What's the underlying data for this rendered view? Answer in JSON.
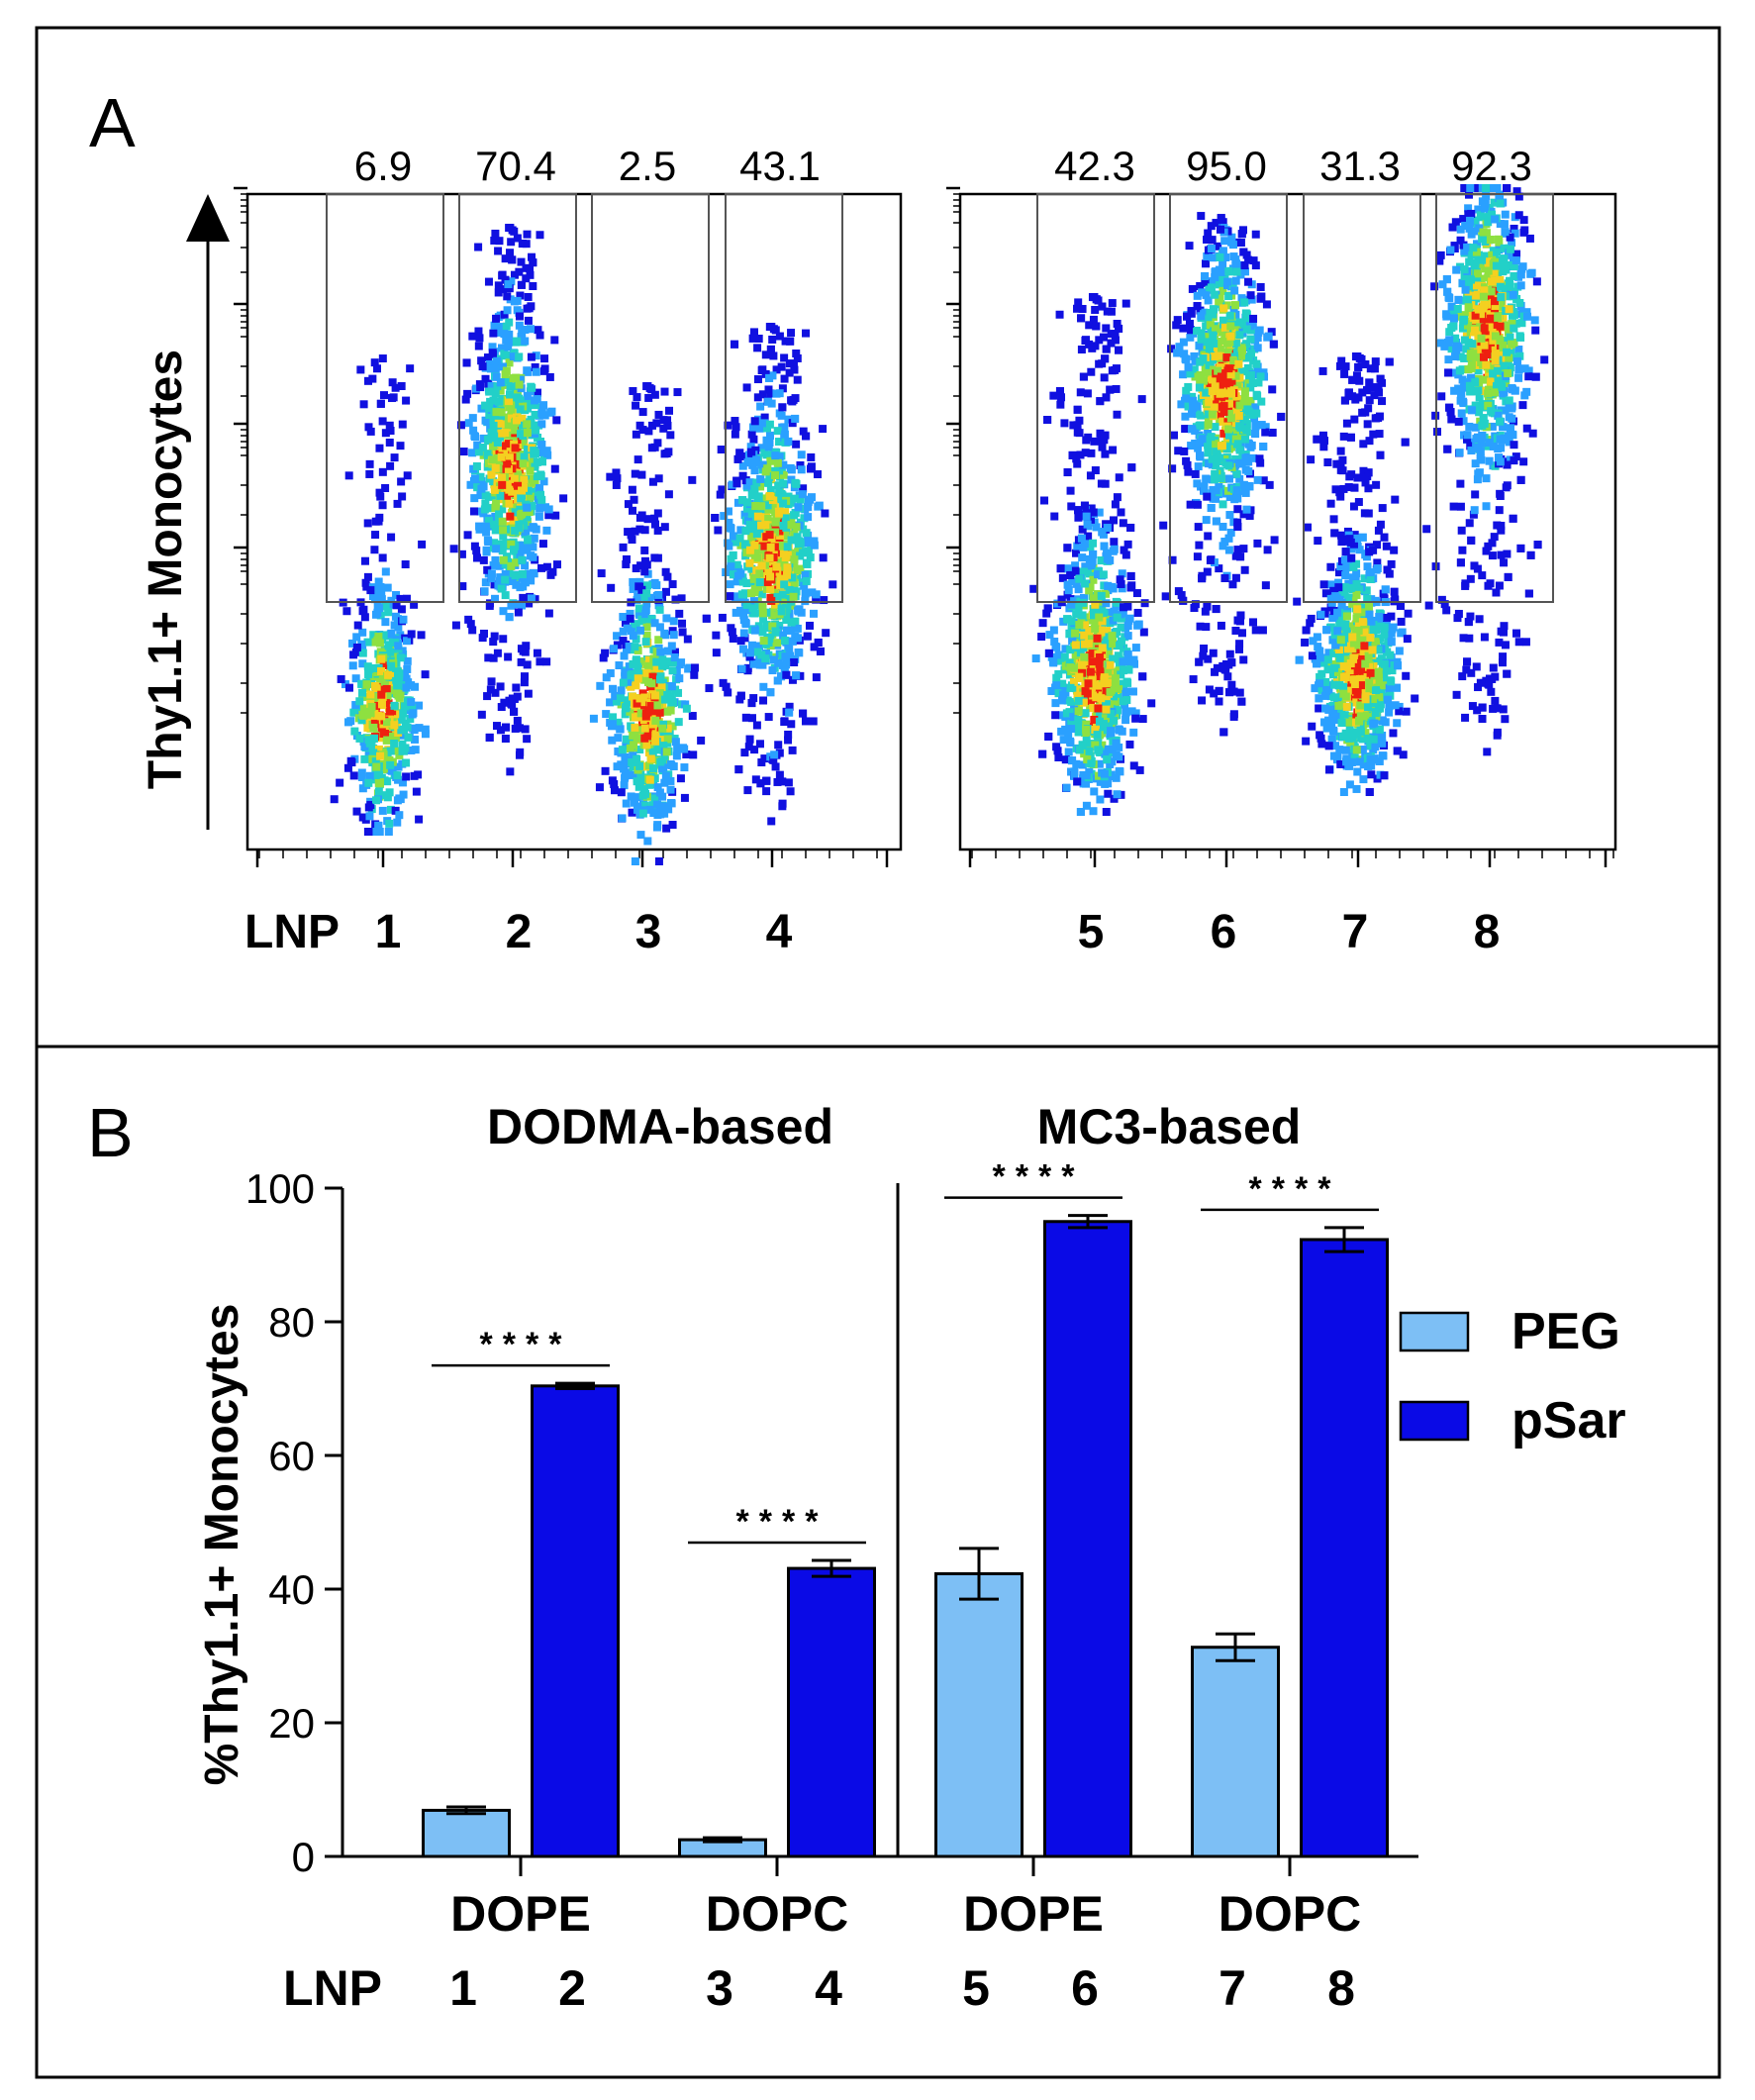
{
  "panel_a": {
    "letter": "A",
    "ylabel": "Thy1.1+ Monocytes",
    "lnp_prefix": "LNP",
    "gates": [
      {
        "lnp": "1",
        "percent": "6.9"
      },
      {
        "lnp": "2",
        "percent": "70.4"
      },
      {
        "lnp": "3",
        "percent": "2.5"
      },
      {
        "lnp": "4",
        "percent": "43.1"
      },
      {
        "lnp": "5",
        "percent": "42.3"
      },
      {
        "lnp": "6",
        "percent": "95.0"
      },
      {
        "lnp": "7",
        "percent": "31.3"
      },
      {
        "lnp": "8",
        "percent": "92.3"
      }
    ],
    "colors": {
      "low": "#1010e0",
      "mid": "#22d0c8",
      "high": "#ee2010",
      "gate": "#555555"
    }
  },
  "panel_b": {
    "letter": "B",
    "group_titles": [
      "DODMA-based",
      "MC3-based"
    ],
    "lipid_labels": [
      "DOPE",
      "DOPC",
      "DOPE",
      "DOPC"
    ],
    "lnp_label": "LNP",
    "significance": "****"
  },
  "chart_data": {
    "type": "bar",
    "title": "",
    "ylabel": "%Thy1.1+ Monocytes",
    "xlabel": "",
    "ylim": [
      0,
      100
    ],
    "yticks": [
      0,
      20,
      40,
      60,
      80,
      100
    ],
    "categories": [
      "DOPE",
      "DOPC",
      "DOPE",
      "DOPC"
    ],
    "groups": [
      "DODMA-based",
      "DODMA-based",
      "MC3-based",
      "MC3-based"
    ],
    "series": [
      {
        "name": "PEG",
        "color": "#7dbff5",
        "lnp": [
          "1",
          "3",
          "5",
          "7"
        ],
        "values": [
          6.9,
          2.5,
          42.3,
          31.3
        ],
        "errors": [
          0.5,
          0.3,
          3.8,
          2.0
        ]
      },
      {
        "name": "pSar",
        "color": "#0a0ae6",
        "lnp": [
          "2",
          "4",
          "6",
          "8"
        ],
        "values": [
          70.4,
          43.1,
          95.0,
          92.3
        ],
        "errors": [
          0.4,
          1.2,
          0.9,
          1.8
        ]
      }
    ],
    "significant_pairs": [
      0,
      1,
      2,
      3
    ]
  }
}
